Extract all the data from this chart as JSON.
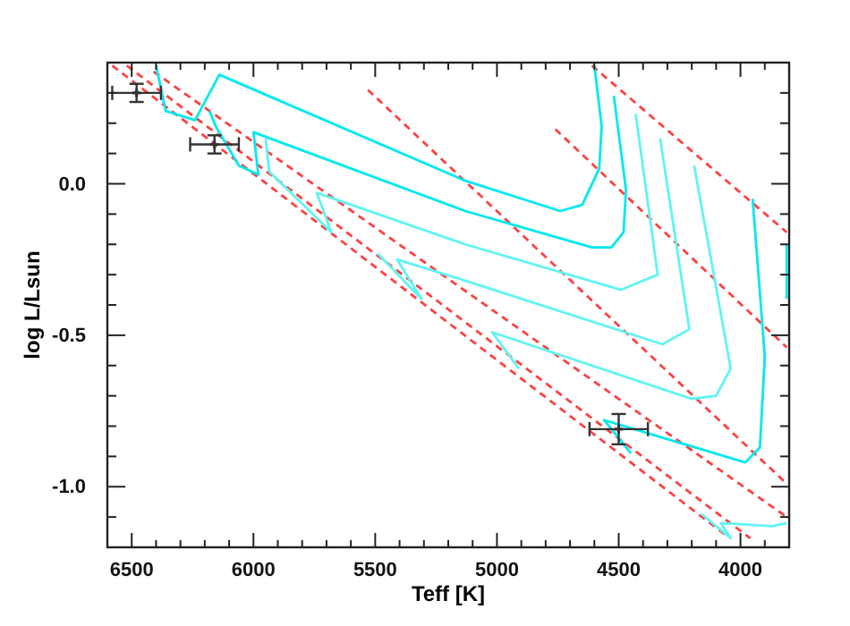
{
  "chart_data": {
    "type": "line",
    "xlabel": "Teff [K]",
    "ylabel": "log L/Lsun",
    "xlim": [
      6600,
      3800
    ],
    "ylim": [
      -1.2,
      0.4
    ],
    "xticks": [
      {
        "value": 6600,
        "label": null
      },
      6500,
      {
        "value": 6400,
        "label": null
      },
      {
        "value": 6300,
        "label": null
      },
      {
        "value": 6200,
        "label": null
      },
      {
        "value": 6100,
        "label": null
      },
      6000,
      {
        "value": 5900,
        "label": null
      },
      {
        "value": 5800,
        "label": null
      },
      {
        "value": 5700,
        "label": null
      },
      {
        "value": 5600,
        "label": null
      },
      5500,
      {
        "value": 5400,
        "label": null
      },
      {
        "value": 5300,
        "label": null
      },
      {
        "value": 5200,
        "label": null
      },
      {
        "value": 5100,
        "label": null
      },
      5000,
      {
        "value": 4900,
        "label": null
      },
      {
        "value": 4800,
        "label": null
      },
      {
        "value": 4700,
        "label": null
      },
      {
        "value": 4600,
        "label": null
      },
      4500,
      {
        "value": 4400,
        "label": null
      },
      {
        "value": 4300,
        "label": null
      },
      {
        "value": 4200,
        "label": null
      },
      {
        "value": 4100,
        "label": null
      },
      4000,
      {
        "value": 3900,
        "label": null
      }
    ],
    "yticks": [
      {
        "value": -1.1,
        "label": null
      },
      {
        "value": -1.0,
        "label": "-1.0"
      },
      {
        "value": -0.9,
        "label": null
      },
      {
        "value": -0.8,
        "label": null
      },
      {
        "value": -0.7,
        "label": null
      },
      {
        "value": -0.6,
        "label": null
      },
      {
        "value": -0.5,
        "label": "-0.5"
      },
      {
        "value": -0.4,
        "label": null
      },
      {
        "value": -0.3,
        "label": null
      },
      {
        "value": -0.2,
        "label": null
      },
      {
        "value": -0.1,
        "label": null
      },
      {
        "value": 0.0,
        "label": "0.0"
      },
      {
        "value": 0.1,
        "label": null
      },
      {
        "value": 0.2,
        "label": null
      },
      {
        "value": 0.3,
        "label": null
      }
    ],
    "series": [
      {
        "color": "#ff4040",
        "line_style": "dashed",
        "x": [
          6580,
          4060
        ],
        "values": [
          0.39,
          -1.16
        ]
      },
      {
        "color": "#ff4040",
        "line_style": "dashed",
        "x": [
          6520,
          3960
        ],
        "values": [
          0.39,
          -1.17
        ]
      },
      {
        "color": "#ff4040",
        "line_style": "dashed",
        "x": [
          6410,
          3810
        ],
        "values": [
          0.37,
          -1.1
        ]
      },
      {
        "color": "#ff4040",
        "line_style": "dashed",
        "x": [
          5530,
          3810
        ],
        "values": [
          0.31,
          -0.99
        ]
      },
      {
        "color": "#ff4040",
        "line_style": "dashed",
        "x": [
          4760,
          3810
        ],
        "values": [
          0.18,
          -0.54
        ]
      },
      {
        "color": "#ff4040",
        "line_style": "dashed",
        "x": [
          4610,
          3810
        ],
        "values": [
          0.39,
          -0.16
        ]
      },
      {
        "color": "#00e8f0",
        "line_style": "solid",
        "x": [
          6400,
          6360,
          6240,
          6140,
          5130,
          4740,
          4650,
          4580,
          4570,
          4600
        ],
        "values": [
          0.39,
          0.24,
          0.21,
          0.36,
          0.01,
          -0.09,
          -0.07,
          0.05,
          0.19,
          0.39
        ]
      },
      {
        "color": "#00e8f0",
        "line_style": "solid",
        "x": [
          6180,
          6155,
          6060,
          5980,
          6000,
          5130,
          4610,
          4530,
          4480,
          4470,
          4520
        ],
        "values": [
          0.24,
          0.19,
          0.06,
          0.03,
          0.17,
          -0.09,
          -0.21,
          -0.21,
          -0.16,
          -0.02,
          0.29
        ]
      },
      {
        "color": "#60f4f4",
        "line_style": "solid",
        "x": [
          5950,
          5935,
          5680,
          5740,
          5130,
          4490,
          4340,
          4430
        ],
        "values": [
          0.15,
          0.04,
          -0.16,
          -0.03,
          -0.2,
          -0.35,
          -0.3,
          0.23
        ]
      },
      {
        "color": "#60f4f4",
        "line_style": "solid",
        "x": [
          5490,
          5310,
          5410,
          5130,
          4320,
          4210,
          4330
        ],
        "values": [
          -0.23,
          -0.38,
          -0.25,
          -0.32,
          -0.53,
          -0.48,
          0.15
        ]
      },
      {
        "color": "#60f4f4",
        "line_style": "solid",
        "x": [
          4910,
          5020,
          4200,
          4100,
          4040,
          4190
        ],
        "values": [
          -0.61,
          -0.49,
          -0.71,
          -0.7,
          -0.61,
          0.06
        ]
      },
      {
        "color": "#00e8f0",
        "line_style": "solid",
        "x": [
          4450,
          4560,
          3980,
          3920,
          3900,
          3950
        ],
        "values": [
          -0.89,
          -0.78,
          -0.92,
          -0.87,
          -0.57,
          -0.05
        ]
      },
      {
        "color": "#60f4f4",
        "line_style": "solid",
        "x": [
          4160,
          4040,
          4080,
          3870,
          3810
        ],
        "values": [
          -1.09,
          -1.17,
          -1.12,
          -1.13,
          -1.12
        ]
      },
      {
        "color": "#00e8f0",
        "line_style": "solid",
        "x": [
          3810,
          3810
        ],
        "values": [
          -0.2,
          -0.38
        ]
      },
      {
        "type": "scatter",
        "color": "#333333",
        "marker": "cross",
        "x": [
          6480,
          6160,
          4500
        ],
        "values": [
          0.3,
          0.13,
          -0.81
        ],
        "errors": [
          0.03,
          0.03,
          0.05
        ],
        "xerrors": [
          100,
          100,
          120
        ]
      }
    ]
  }
}
